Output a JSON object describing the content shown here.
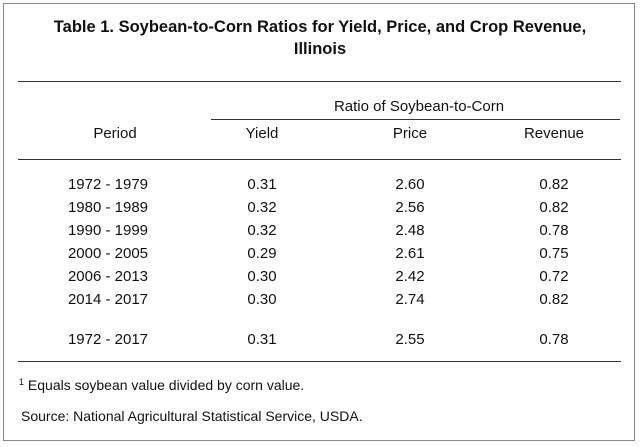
{
  "title": {
    "line1": "Table 1.  Soybean-to-Corn Ratios for Yield, Price, and Crop Revenue,",
    "line2": "Illinois"
  },
  "header": {
    "group": "Ratio of Soybean-to-Corn",
    "period": "Period",
    "yield": "Yield",
    "price": "Price",
    "revenue": "Revenue"
  },
  "rows": [
    {
      "period": "1972 - 1979",
      "yield": "0.31",
      "price": "2.60",
      "revenue": "0.82"
    },
    {
      "period": "1980 - 1989",
      "yield": "0.32",
      "price": "2.56",
      "revenue": "0.82"
    },
    {
      "period": "1990 - 1999",
      "yield": "0.32",
      "price": "2.48",
      "revenue": "0.78"
    },
    {
      "period": "2000 - 2005",
      "yield": "0.29",
      "price": "2.61",
      "revenue": "0.75"
    },
    {
      "period": "2006 - 2013",
      "yield": "0.30",
      "price": "2.42",
      "revenue": "0.72"
    },
    {
      "period": "2014 - 2017",
      "yield": "0.30",
      "price": "2.74",
      "revenue": "0.82"
    }
  ],
  "total": {
    "period": "1972 - 2017",
    "yield": "0.31",
    "price": "2.55",
    "revenue": "0.78"
  },
  "footnote": {
    "marker": "1",
    "text": " Equals soybean value divided by corn value."
  },
  "source": "Source:  National Agricultural Statistical Service, USDA."
}
